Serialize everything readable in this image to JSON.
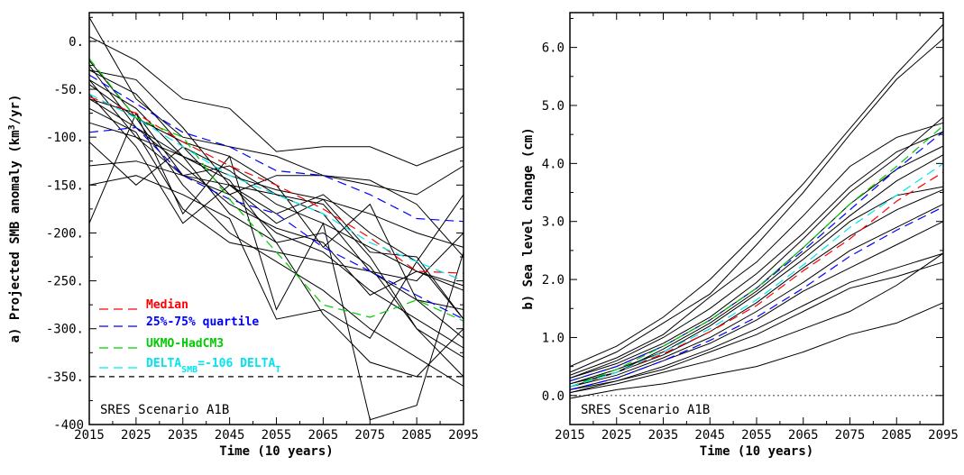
{
  "chart_data": [
    {
      "type": "line",
      "panel": "a",
      "xlabel": "Time (10 years)",
      "ylabel_prefix": "a) Projected SMB anomaly (km",
      "ylabel_sup": "3",
      "ylabel_suffix": "/yr)",
      "xlim": [
        2015,
        2095
      ],
      "ylim": [
        -400,
        30
      ],
      "x": [
        2015,
        2025,
        2035,
        2045,
        2055,
        2065,
        2075,
        2085,
        2095
      ],
      "xticks": [
        2015,
        2025,
        2035,
        2045,
        2055,
        2065,
        2075,
        2085,
        2095
      ],
      "xtick_labels": [
        "2015",
        "2025",
        "2035",
        "2045",
        "2055",
        "2065",
        "2075",
        "2085",
        "2095"
      ],
      "yticks": [
        0,
        -50,
        -100,
        -150,
        -200,
        -250,
        -300,
        -350,
        -400
      ],
      "ytick_labels": [
        "0.",
        "-50.",
        "-100.",
        "-150.",
        "-200.",
        "-250.",
        "-300.",
        "-350.",
        "-400"
      ],
      "annotation": "SRES Scenario A1B",
      "reference_lines": [
        {
          "y": 0,
          "style": "dotted",
          "color": "#555555"
        },
        {
          "y": -350,
          "style": "dashed",
          "color": "#000000"
        }
      ],
      "legend": [
        {
          "label": "Median",
          "color": "#ff0000"
        },
        {
          "label": "25%-75% quartile",
          "color": "#0000ff"
        },
        {
          "label": "UKMO-HadCM3",
          "color": "#00cc00"
        },
        {
          "label_main": "DELTA",
          "label_sub": "SMB",
          "label_mid": "=-106 DELTA",
          "label_sub2": "T",
          "color": "#00e5ee"
        }
      ],
      "legend_position": "lower-left",
      "series": [
        {
          "values": [
            25,
            -60,
            -100,
            -110,
            -120,
            -140,
            -150,
            -160,
            -130
          ],
          "color": "#000000"
        },
        {
          "values": [
            5,
            -20,
            -60,
            -70,
            -115,
            -110,
            -110,
            -130,
            -110
          ],
          "color": "#000000"
        },
        {
          "values": [
            -30,
            -40,
            -90,
            -150,
            -160,
            -170,
            -225,
            -300,
            -330
          ],
          "color": "#000000"
        },
        {
          "values": [
            -40,
            -100,
            -140,
            -130,
            -160,
            -180,
            -240,
            -250,
            -200
          ],
          "color": "#000000"
        },
        {
          "values": [
            -55,
            -110,
            -190,
            -150,
            -180,
            -160,
            -200,
            -230,
            -160
          ],
          "color": "#000000"
        },
        {
          "values": [
            -60,
            -90,
            -130,
            -170,
            -195,
            -210,
            -265,
            -240,
            -255
          ],
          "color": "#000000"
        },
        {
          "values": [
            -85,
            -100,
            -120,
            -180,
            -210,
            -200,
            -235,
            -300,
            -350
          ],
          "color": "#000000"
        },
        {
          "values": [
            -105,
            -150,
            -110,
            -160,
            -140,
            -140,
            -145,
            -170,
            -225
          ],
          "color": "#000000"
        },
        {
          "values": [
            -130,
            -125,
            -140,
            -150,
            -190,
            -165,
            -220,
            -225,
            -290
          ],
          "color": "#000000"
        },
        {
          "values": [
            -150,
            -140,
            -160,
            -185,
            -290,
            -280,
            -310,
            -230,
            -290
          ],
          "color": "#000000"
        },
        {
          "values": [
            -190,
            -75,
            -180,
            -120,
            -280,
            -190,
            -395,
            -380,
            -220
          ],
          "color": "#000000"
        },
        {
          "values": [
            -25,
            -90,
            -120,
            -145,
            -210,
            -285,
            -335,
            -350,
            -300
          ],
          "color": "#000000"
        },
        {
          "values": [
            -60,
            -75,
            -140,
            -160,
            -200,
            -220,
            -260,
            -290,
            -320
          ],
          "color": "#000000"
        },
        {
          "values": [
            -40,
            -70,
            -120,
            -140,
            -155,
            -165,
            -180,
            -200,
            -215
          ],
          "color": "#000000"
        },
        {
          "values": [
            -45,
            -80,
            -105,
            -120,
            -150,
            -215,
            -170,
            -270,
            -280
          ],
          "color": "#000000"
        },
        {
          "values": [
            -70,
            -95,
            -175,
            -210,
            -220,
            -230,
            -240,
            -270,
            -310
          ],
          "color": "#000000"
        },
        {
          "values": [
            -20,
            -80,
            -150,
            -200,
            -230,
            -260,
            -300,
            -330,
            -360
          ],
          "color": "#000000"
        },
        {
          "values": [
            -30,
            -55,
            -110,
            -135,
            -170,
            -190,
            -215,
            -240,
            -260
          ],
          "color": "#000000"
        },
        {
          "name": "Median",
          "values": [
            -58,
            -75,
            -105,
            -130,
            -150,
            -175,
            -205,
            -240,
            -242
          ],
          "color": "#ff0000",
          "dash": true
        },
        {
          "name": "25% quartile",
          "values": [
            -35,
            -65,
            -95,
            -110,
            -135,
            -140,
            -160,
            -185,
            -188
          ],
          "color": "#0000ff",
          "dash": true
        },
        {
          "name": "75% quartile",
          "values": [
            -95,
            -90,
            -140,
            -165,
            -180,
            -215,
            -240,
            -265,
            -290
          ],
          "color": "#0000ff",
          "dash": true
        },
        {
          "name": "UKMO-HadCM3",
          "values": [
            -18,
            -80,
            -100,
            -165,
            -220,
            -275,
            -288,
            -270,
            -292
          ],
          "color": "#00cc00",
          "dash": true
        },
        {
          "name": "DELTA_SMB=-106 DELTA_T",
          "values": [
            -55,
            -80,
            -110,
            -140,
            -160,
            -180,
            -210,
            -230,
            -250
          ],
          "color": "#00e5ee",
          "dash": true
        }
      ]
    },
    {
      "type": "line",
      "panel": "b",
      "xlabel": "Time (10 years)",
      "ylabel": "b) Sea level change (cm)",
      "xlim": [
        2015,
        2095
      ],
      "ylim": [
        -0.5,
        6.6
      ],
      "x": [
        2015,
        2025,
        2035,
        2045,
        2055,
        2065,
        2075,
        2085,
        2095
      ],
      "xticks": [
        2015,
        2025,
        2035,
        2045,
        2055,
        2065,
        2075,
        2085,
        2095
      ],
      "xtick_labels": [
        "2015",
        "2025",
        "2035",
        "2045",
        "2055",
        "2065",
        "2075",
        "2085",
        "2095"
      ],
      "yticks": [
        0,
        1,
        2,
        3,
        4,
        5,
        6
      ],
      "ytick_labels": [
        "0.0",
        "1.0",
        "2.0",
        "3.0",
        "4.0",
        "5.0",
        "6.0"
      ],
      "annotation": "SRES Scenario A1B",
      "reference_lines": [
        {
          "y": 0,
          "style": "dotted",
          "color": "#555555"
        }
      ],
      "series": [
        {
          "values": [
            0.5,
            0.85,
            1.35,
            2.0,
            2.8,
            3.65,
            4.6,
            5.55,
            6.4
          ],
          "color": "#000000"
        },
        {
          "values": [
            0.4,
            0.75,
            1.25,
            1.75,
            2.6,
            3.5,
            4.5,
            5.45,
            6.15
          ],
          "color": "#000000"
        },
        {
          "values": [
            0.35,
            0.65,
            1.05,
            1.7,
            2.3,
            3.1,
            3.95,
            4.45,
            4.7
          ],
          "color": "#000000"
        },
        {
          "values": [
            0.3,
            0.55,
            0.9,
            1.35,
            1.95,
            2.7,
            3.5,
            4.1,
            4.8
          ],
          "color": "#000000"
        },
        {
          "values": [
            0.25,
            0.5,
            0.85,
            1.3,
            1.85,
            2.55,
            3.3,
            3.9,
            4.3
          ],
          "color": "#000000"
        },
        {
          "values": [
            0.2,
            0.45,
            0.75,
            1.2,
            1.75,
            2.35,
            3.0,
            3.45,
            3.6
          ],
          "color": "#000000"
        },
        {
          "values": [
            0.2,
            0.4,
            0.7,
            1.1,
            1.6,
            2.2,
            2.75,
            3.2,
            3.55
          ],
          "color": "#000000"
        },
        {
          "values": [
            0.15,
            0.35,
            0.65,
            1.0,
            1.45,
            1.95,
            2.5,
            2.9,
            3.3
          ],
          "color": "#000000"
        },
        {
          "values": [
            0.1,
            0.3,
            0.6,
            0.9,
            1.3,
            1.8,
            2.2,
            2.6,
            3.0
          ],
          "color": "#000000"
        },
        {
          "values": [
            0.1,
            0.25,
            0.5,
            0.8,
            1.15,
            1.55,
            1.95,
            2.2,
            2.45
          ],
          "color": "#000000"
        },
        {
          "values": [
            0.05,
            0.25,
            0.45,
            0.75,
            1.05,
            1.45,
            1.85,
            2.05,
            2.3
          ],
          "color": "#000000"
        },
        {
          "values": [
            0.05,
            0.2,
            0.4,
            0.6,
            0.85,
            1.15,
            1.45,
            1.9,
            2.45
          ],
          "color": "#000000"
        },
        {
          "values": [
            -0.05,
            0.1,
            0.2,
            0.35,
            0.5,
            0.75,
            1.05,
            1.25,
            1.6
          ],
          "color": "#000000"
        },
        {
          "values": [
            0.3,
            0.6,
            1.0,
            1.5,
            2.1,
            2.8,
            3.6,
            4.2,
            4.55
          ],
          "color": "#000000"
        },
        {
          "values": [
            0.15,
            0.4,
            0.8,
            1.25,
            1.8,
            2.45,
            3.1,
            3.7,
            4.15
          ],
          "color": "#000000"
        },
        {
          "name": "Median",
          "values": [
            0.15,
            0.4,
            0.72,
            1.1,
            1.55,
            2.15,
            2.7,
            3.35,
            3.85
          ],
          "color": "#ff0000",
          "dash": true
        },
        {
          "name": "25% quartile",
          "values": [
            0.25,
            0.5,
            0.85,
            1.3,
            1.85,
            2.5,
            3.2,
            3.9,
            4.55
          ],
          "color": "#0000ff",
          "dash": true
        },
        {
          "name": "75% quartile",
          "values": [
            0.1,
            0.3,
            0.6,
            0.95,
            1.35,
            1.85,
            2.4,
            2.85,
            3.25
          ],
          "color": "#0000ff",
          "dash": true
        },
        {
          "name": "UKMO-HadCM3",
          "values": [
            0.15,
            0.45,
            0.85,
            1.3,
            1.85,
            2.55,
            3.3,
            3.95,
            4.65
          ],
          "color": "#00cc00",
          "dash": true
        },
        {
          "name": "DELTA_SMB=-106 DELTA_T",
          "values": [
            0.15,
            0.4,
            0.75,
            1.15,
            1.65,
            2.25,
            2.9,
            3.45,
            4.0
          ],
          "color": "#00e5ee",
          "dash": true
        }
      ]
    }
  ]
}
